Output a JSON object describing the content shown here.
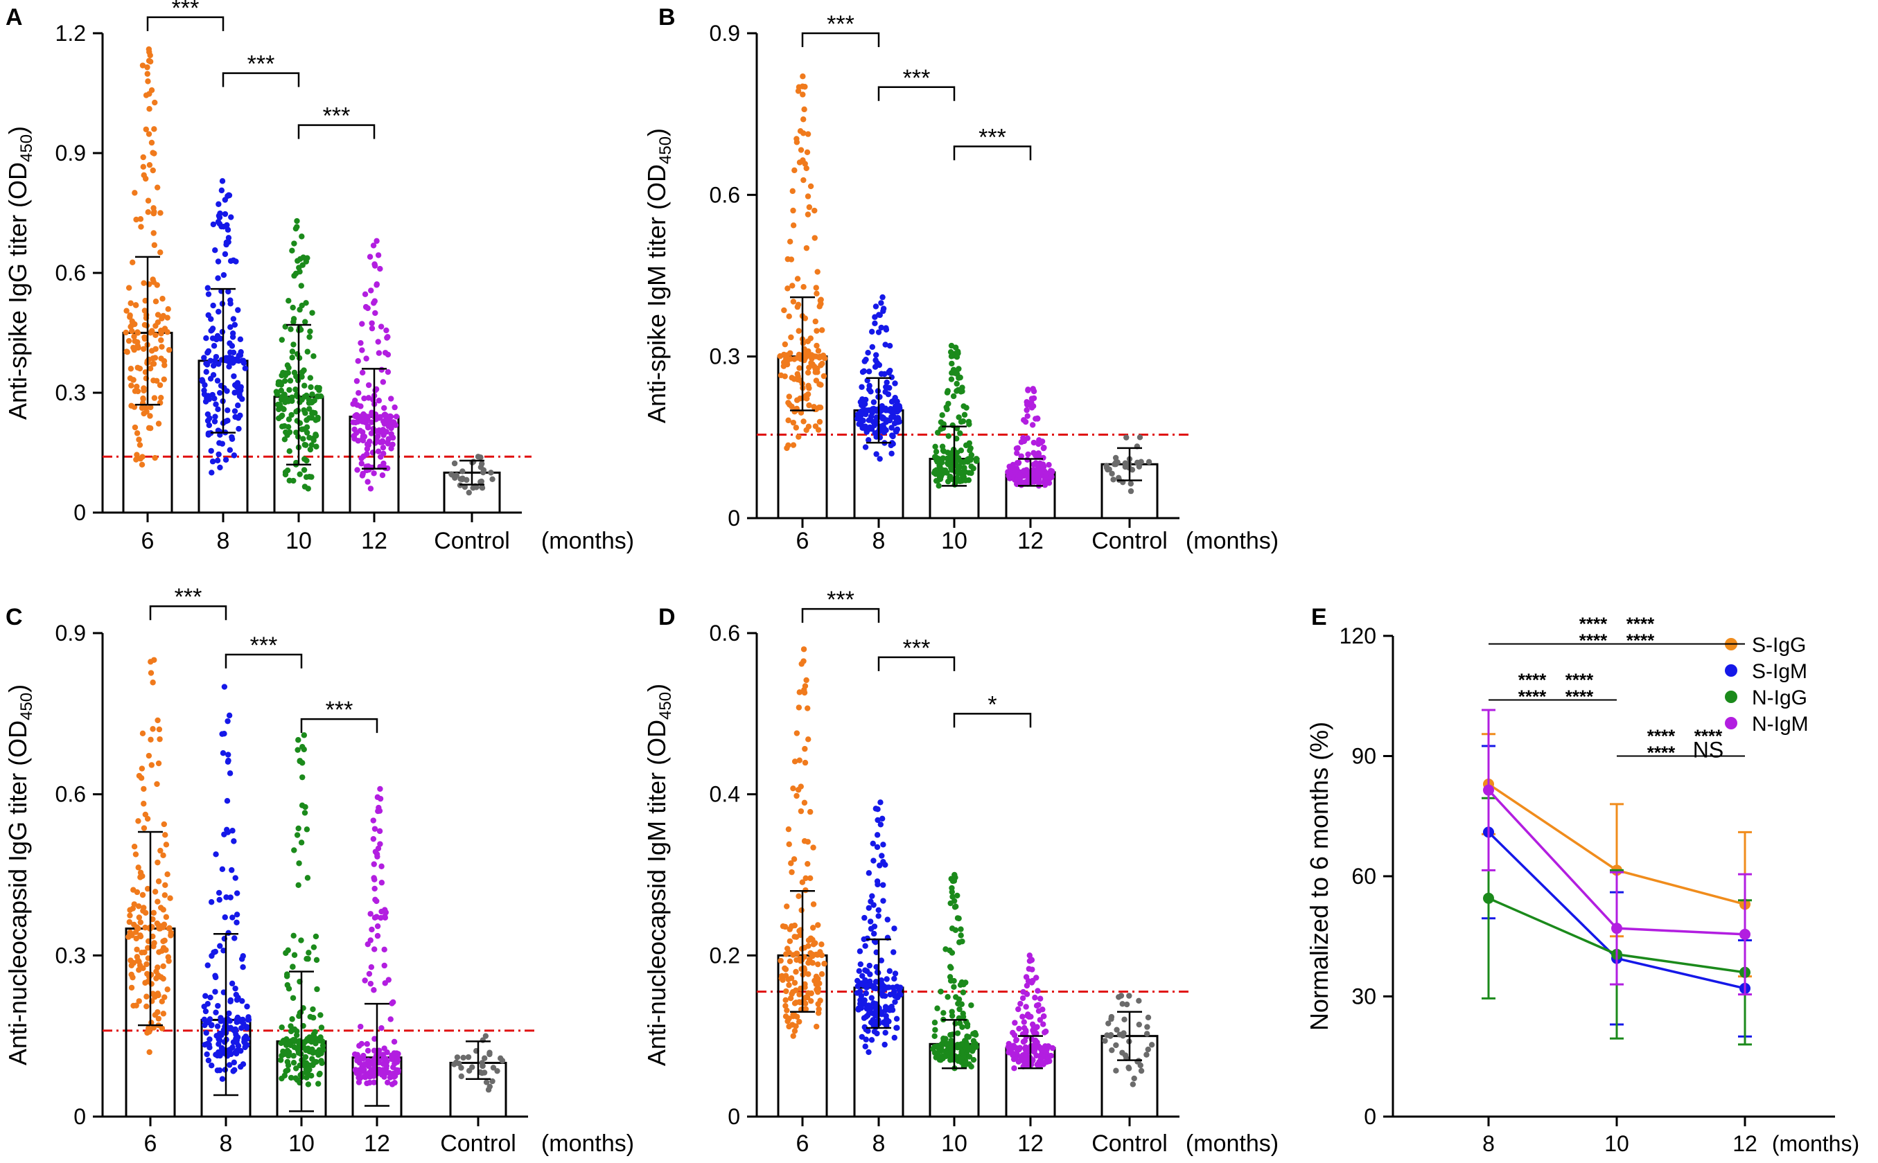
{
  "figure": {
    "groups": [
      "6",
      "8",
      "10",
      "12",
      "Control"
    ],
    "unit_label": "(months)",
    "colors": {
      "m6": "#f07a1c",
      "m8": "#1518e8",
      "m10": "#1b8a1b",
      "m12": "#b21ee0",
      "control": "#6b6b6b",
      "threshold": "#e01010"
    }
  },
  "chart_data": [
    {
      "id": "A",
      "panel_label": "A",
      "type": "bar",
      "ylabel_main": "Anti-spike IgG titer (OD",
      "ylabel_sub": "450",
      "ylabel_end": ")",
      "ylim": [
        0,
        1.2
      ],
      "ticks": [
        0,
        0.3,
        0.6,
        0.9,
        1.2
      ],
      "tick_labels": [
        "0",
        "0.3",
        "0.6",
        "0.9",
        "1.2"
      ],
      "categories": [
        "6",
        "8",
        "10",
        "12",
        "Control"
      ],
      "values": [
        0.45,
        0.38,
        0.29,
        0.24,
        0.1
      ],
      "sd_low": [
        0.27,
        0.2,
        0.12,
        0.11,
        0.07
      ],
      "sd_high": [
        0.64,
        0.56,
        0.47,
        0.36,
        0.13
      ],
      "range_min": [
        0.12,
        0.1,
        0.06,
        0.06,
        0.05
      ],
      "range_max": [
        1.16,
        0.83,
        0.73,
        0.68,
        0.14
      ],
      "n_points": [
        160,
        170,
        170,
        170,
        30
      ],
      "threshold": 0.14,
      "comparisons": [
        {
          "from": "6",
          "to": "8",
          "label": "***",
          "level": 1.24
        },
        {
          "from": "8",
          "to": "10",
          "label": "***",
          "level": 1.1
        },
        {
          "from": "10",
          "to": "12",
          "label": "***",
          "level": 0.97
        }
      ]
    },
    {
      "id": "B",
      "panel_label": "B",
      "type": "bar",
      "ylabel_main": "Anti-spike IgM titer (OD",
      "ylabel_sub": "450",
      "ylabel_end": ")",
      "ylim": [
        0,
        0.9
      ],
      "ticks": [
        0,
        0.3,
        0.6,
        0.9
      ],
      "tick_labels": [
        "0",
        "0.3",
        "0.6",
        "0.9"
      ],
      "categories": [
        "6",
        "8",
        "10",
        "12",
        "Control"
      ],
      "values": [
        0.3,
        0.2,
        0.11,
        0.085,
        0.1
      ],
      "sd_low": [
        0.2,
        0.14,
        0.06,
        0.06,
        0.07
      ],
      "sd_high": [
        0.41,
        0.26,
        0.17,
        0.11,
        0.13
      ],
      "range_min": [
        0.13,
        0.11,
        0.06,
        0.06,
        0.05
      ],
      "range_max": [
        0.82,
        0.41,
        0.32,
        0.24,
        0.15
      ],
      "n_points": [
        160,
        170,
        170,
        170,
        30
      ],
      "threshold": 0.155,
      "comparisons": [
        {
          "from": "6",
          "to": "8",
          "label": "***",
          "level": 0.9
        },
        {
          "from": "8",
          "to": "10",
          "label": "***",
          "level": 0.8
        },
        {
          "from": "10",
          "to": "12",
          "label": "***",
          "level": 0.69
        }
      ]
    },
    {
      "id": "C",
      "panel_label": "C",
      "type": "bar",
      "ylabel_main": "Anti-nucleocapsid IgG titer (OD",
      "ylabel_sub": "450",
      "ylabel_end": ")",
      "ylim": [
        0,
        0.9
      ],
      "ticks": [
        0,
        0.3,
        0.6,
        0.9
      ],
      "tick_labels": [
        "0",
        "0.3",
        "0.6",
        "0.9"
      ],
      "categories": [
        "6",
        "8",
        "10",
        "12",
        "Control"
      ],
      "values": [
        0.35,
        0.18,
        0.14,
        0.11,
        0.1
      ],
      "sd_low": [
        0.17,
        0.04,
        0.01,
        0.02,
        0.07
      ],
      "sd_high": [
        0.53,
        0.34,
        0.27,
        0.21,
        0.14
      ],
      "range_min": [
        0.12,
        0.07,
        0.06,
        0.06,
        0.05
      ],
      "range_max": [
        0.85,
        0.8,
        0.71,
        0.61,
        0.15
      ],
      "n_points": [
        160,
        170,
        170,
        170,
        30
      ],
      "threshold": 0.16,
      "comparisons": [
        {
          "from": "6",
          "to": "8",
          "label": "***",
          "level": 0.95
        },
        {
          "from": "8",
          "to": "10",
          "label": "***",
          "level": 0.86
        },
        {
          "from": "10",
          "to": "12",
          "label": "***",
          "level": 0.74
        }
      ]
    },
    {
      "id": "D",
      "panel_label": "D",
      "type": "bar",
      "ylabel_main": "Anti-nucleocapsid IgM titer (OD",
      "ylabel_sub": "450",
      "ylabel_end": ")",
      "ylim": [
        0,
        0.6
      ],
      "ticks": [
        0,
        0.2,
        0.4,
        0.6
      ],
      "tick_labels": [
        "0",
        "0.2",
        "0.4",
        "0.6"
      ],
      "categories": [
        "6",
        "8",
        "10",
        "12",
        "Control"
      ],
      "values": [
        0.2,
        0.16,
        0.09,
        0.085,
        0.1
      ],
      "sd_low": [
        0.13,
        0.11,
        0.06,
        0.06,
        0.07
      ],
      "sd_high": [
        0.28,
        0.22,
        0.12,
        0.1,
        0.13
      ],
      "range_min": [
        0.1,
        0.08,
        0.06,
        0.06,
        0.04
      ],
      "range_max": [
        0.58,
        0.39,
        0.3,
        0.2,
        0.15
      ],
      "n_points": [
        160,
        170,
        170,
        170,
        40
      ],
      "threshold": 0.155,
      "comparisons": [
        {
          "from": "6",
          "to": "8",
          "label": "***",
          "level": 0.63
        },
        {
          "from": "8",
          "to": "10",
          "label": "***",
          "level": 0.57
        },
        {
          "from": "10",
          "to": "12",
          "label": "*",
          "level": 0.5
        }
      ]
    },
    {
      "id": "E",
      "panel_label": "E",
      "type": "line",
      "ylabel": "Normalized to 6 months (%)",
      "x": [
        "8",
        "10",
        "12"
      ],
      "ylim": [
        0,
        120
      ],
      "ticks": [
        0,
        30,
        60,
        90,
        120
      ],
      "tick_labels": [
        "0",
        "30",
        "60",
        "90",
        "120"
      ],
      "series": [
        {
          "name": "S-IgG",
          "color": "#f08c1c",
          "values": [
            83,
            61.5,
            53
          ],
          "err": [
            12.5,
            16.5,
            18
          ]
        },
        {
          "name": "S-IgM",
          "color": "#1518e8",
          "values": [
            71,
            39.5,
            32
          ],
          "err": [
            21.5,
            16.5,
            12
          ]
        },
        {
          "name": "N-IgG",
          "color": "#1b8a1b",
          "values": [
            54.5,
            40.5,
            36
          ],
          "err": [
            25,
            21,
            18
          ]
        },
        {
          "name": "N-IgM",
          "color": "#b21ee0",
          "values": [
            81.5,
            47,
            45.5
          ],
          "err": [
            20,
            14,
            15
          ]
        }
      ],
      "significance": [
        {
          "from": "8",
          "to": "12",
          "level": 118,
          "rows": [
            [
              {
                "text": "****",
                "series": "S-IgG"
              },
              {
                "text": "****",
                "series": "S-IgM"
              }
            ],
            [
              {
                "text": "****",
                "series": "N-IgG"
              },
              {
                "text": "****",
                "series": "N-IgM"
              }
            ]
          ]
        },
        {
          "from": "8",
          "to": "10",
          "level": 104,
          "rows": [
            [
              {
                "text": "****",
                "series": "S-IgG"
              },
              {
                "text": "****",
                "series": "S-IgM"
              }
            ],
            [
              {
                "text": "****",
                "series": "N-IgG"
              },
              {
                "text": "****",
                "series": "N-IgM"
              }
            ]
          ]
        },
        {
          "from": "10",
          "to": "12",
          "level": 90,
          "rows": [
            [
              {
                "text": "****",
                "series": "S-IgG"
              },
              {
                "text": "****",
                "series": "S-IgM"
              }
            ],
            [
              {
                "text": "****",
                "series": "N-IgG"
              },
              {
                "text": "NS",
                "series": "N-IgM"
              }
            ]
          ]
        }
      ]
    }
  ]
}
